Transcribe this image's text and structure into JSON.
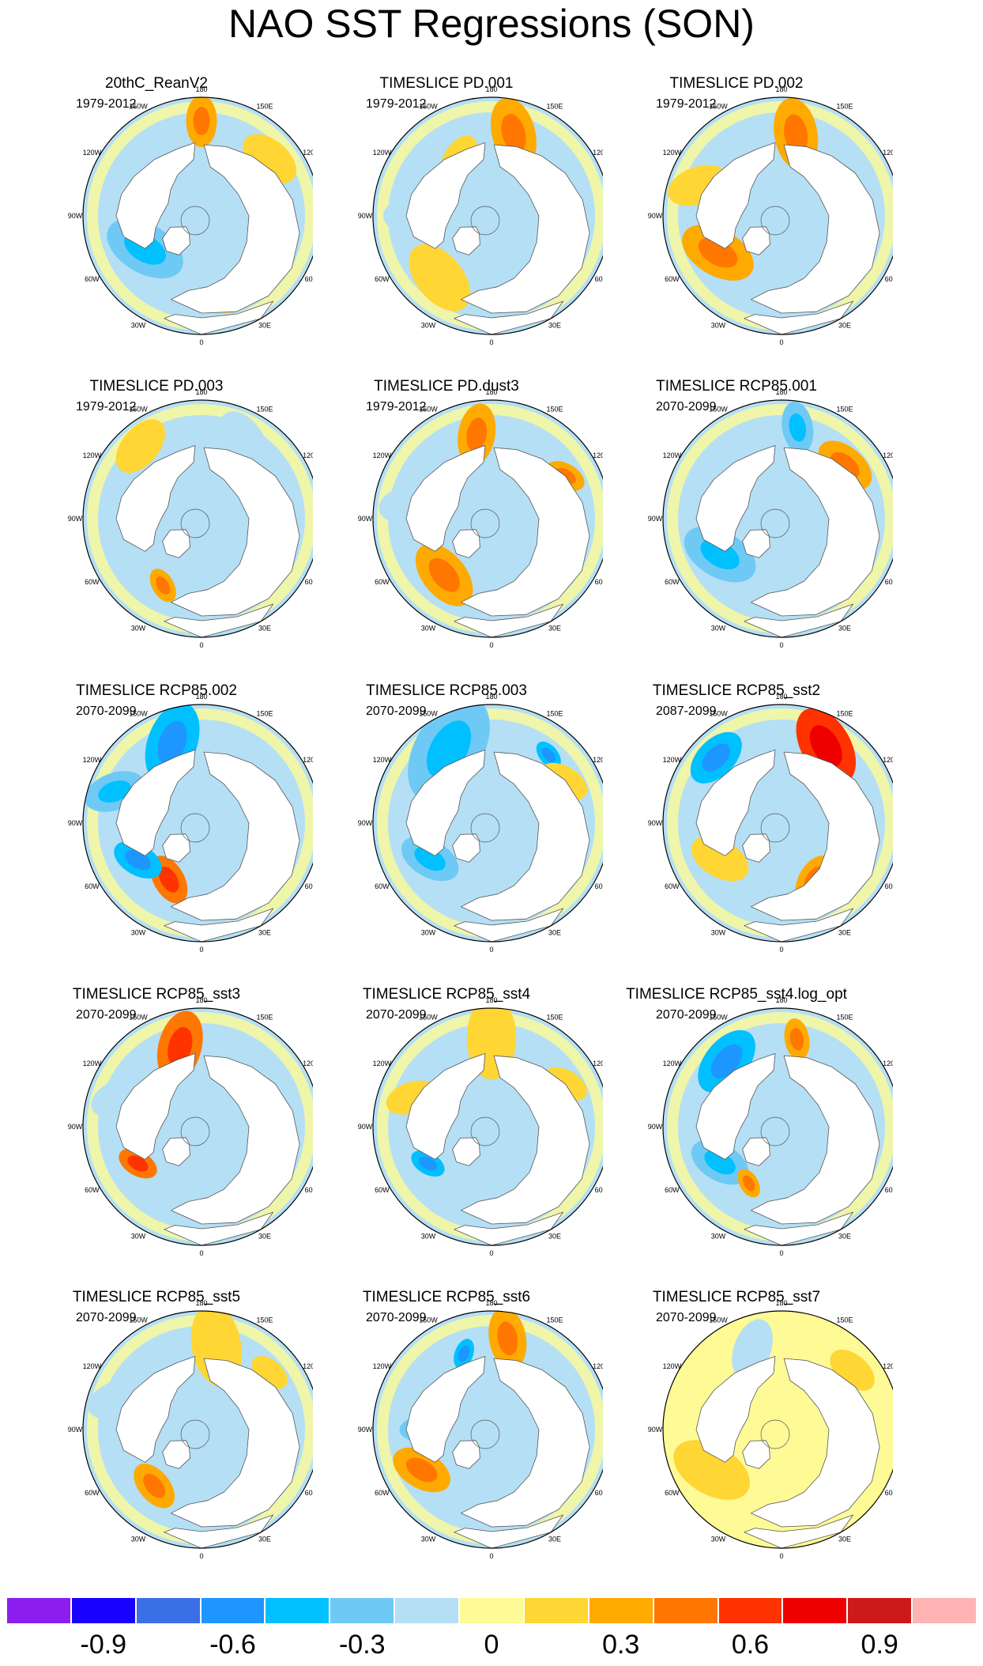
{
  "title": "NAO SST Regressions (SON)",
  "longitude_labels": [
    "180",
    "150E",
    "120E",
    "90E",
    "60E",
    "30E",
    "0",
    "30W",
    "60W",
    "90W",
    "120W",
    "150W"
  ],
  "palette": {
    "land": "#ffffff",
    "coast": "#555555",
    "border": "#000000"
  },
  "panels": [
    {
      "title": "20thC_ReanV2",
      "period": "1979-2012",
      "pattern": "neutral_blue",
      "blobs": [
        {
          "lon": 180,
          "r": 0.8,
          "v": 0.3,
          "s": 0.1
        },
        {
          "lon": 130,
          "r": 0.75,
          "v": 0.15,
          "s": 0.12
        },
        {
          "lon": 300,
          "r": 0.55,
          "v": -0.3,
          "s": 0.16
        },
        {
          "lon": 20,
          "r": 0.7,
          "v": 0.15,
          "s": 0.08
        }
      ]
    },
    {
      "title": "TIMESLICE PD.001",
      "period": "1979-2012",
      "pattern": "warm_pacific",
      "blobs": [
        {
          "lon": 165,
          "r": 0.72,
          "v": 0.3,
          "s": 0.14
        },
        {
          "lon": 210,
          "r": 0.55,
          "v": 0.15,
          "s": 0.1
        },
        {
          "lon": 320,
          "r": 0.68,
          "v": 0.15,
          "s": 0.15
        },
        {
          "lon": 150,
          "r": 0.45,
          "v": -0.6,
          "s": 0.05
        },
        {
          "lon": 270,
          "r": 0.65,
          "v": -0.15,
          "s": 0.12
        }
      ]
    },
    {
      "title": "TIMESLICE PD.002",
      "period": "1979-2012",
      "pattern": "warm_pacific",
      "blobs": [
        {
          "lon": 170,
          "r": 0.7,
          "v": 0.3,
          "s": 0.14
        },
        {
          "lon": 300,
          "r": 0.62,
          "v": 0.3,
          "s": 0.15
        },
        {
          "lon": 250,
          "r": 0.75,
          "v": 0.15,
          "s": 0.12
        },
        {
          "lon": 60,
          "r": 0.7,
          "v": -0.15,
          "s": 0.1
        }
      ]
    },
    {
      "title": "TIMESLICE PD.003",
      "period": "1979-2012",
      "pattern": "neutral_blue",
      "blobs": [
        {
          "lon": 220,
          "r": 0.8,
          "v": 0.15,
          "s": 0.12
        },
        {
          "lon": 150,
          "r": 0.72,
          "v": -0.15,
          "s": 0.14
        },
        {
          "lon": 330,
          "r": 0.65,
          "v": 0.3,
          "s": 0.07
        },
        {
          "lon": 280,
          "r": 0.5,
          "v": -0.3,
          "s": 0.05
        }
      ]
    },
    {
      "title": "TIMESLICE PD.dust3",
      "period": "1979-2012",
      "pattern": "warm_pacific",
      "blobs": [
        {
          "lon": 190,
          "r": 0.72,
          "v": 0.3,
          "s": 0.12
        },
        {
          "lon": 120,
          "r": 0.72,
          "v": 0.3,
          "s": 0.08
        },
        {
          "lon": 320,
          "r": 0.62,
          "v": 0.3,
          "s": 0.14
        },
        {
          "lon": 260,
          "r": 0.7,
          "v": -0.15,
          "s": 0.12
        }
      ]
    },
    {
      "title": "TIMESLICE RCP85.001",
      "period": "2070-2099",
      "pattern": "neutral_blue",
      "blobs": [
        {
          "lon": 170,
          "r": 0.78,
          "v": -0.3,
          "s": 0.1
        },
        {
          "lon": 130,
          "r": 0.7,
          "v": 0.3,
          "s": 0.12
        },
        {
          "lon": 300,
          "r": 0.6,
          "v": -0.3,
          "s": 0.15
        },
        {
          "lon": 40,
          "r": 0.7,
          "v": 0.3,
          "s": 0.06
        }
      ]
    },
    {
      "title": "TIMESLICE RCP85.002",
      "period": "2070-2099",
      "pattern": "cold_pacific",
      "blobs": [
        {
          "lon": 200,
          "r": 0.72,
          "v": -0.45,
          "s": 0.16
        },
        {
          "lon": 250,
          "r": 0.78,
          "v": -0.3,
          "s": 0.12
        },
        {
          "lon": 330,
          "r": 0.55,
          "v": 0.45,
          "s": 0.1
        },
        {
          "lon": 300,
          "r": 0.62,
          "v": -0.45,
          "s": 0.1
        }
      ]
    },
    {
      "title": "TIMESLICE RCP85.003",
      "period": "2070-2099",
      "pattern": "cold_pacific",
      "blobs": [
        {
          "lon": 210,
          "r": 0.72,
          "v": -0.3,
          "s": 0.22
        },
        {
          "lon": 140,
          "r": 0.75,
          "v": -0.45,
          "s": 0.06
        },
        {
          "lon": 300,
          "r": 0.6,
          "v": -0.3,
          "s": 0.12
        },
        {
          "lon": 120,
          "r": 0.7,
          "v": 0.15,
          "s": 0.1
        }
      ]
    },
    {
      "title": "TIMESLICE RCP85_sst2",
      "period": "2087-2099",
      "pattern": "warm_pacific",
      "blobs": [
        {
          "lon": 150,
          "r": 0.75,
          "v": 0.6,
          "s": 0.16
        },
        {
          "lon": 225,
          "r": 0.78,
          "v": -0.45,
          "s": 0.12
        },
        {
          "lon": 300,
          "r": 0.6,
          "v": 0.15,
          "s": 0.12
        },
        {
          "lon": 30,
          "r": 0.55,
          "v": 0.3,
          "s": 0.1
        }
      ]
    },
    {
      "title": "TIMESLICE RCP85_sst3",
      "period": "2070-2099",
      "pattern": "warm_pacific",
      "blobs": [
        {
          "lon": 195,
          "r": 0.7,
          "v": 0.45,
          "s": 0.14
        },
        {
          "lon": 300,
          "r": 0.62,
          "v": 0.45,
          "s": 0.08
        },
        {
          "lon": 250,
          "r": 0.72,
          "v": -0.15,
          "s": 0.12
        },
        {
          "lon": 40,
          "r": 0.6,
          "v": 0.3,
          "s": 0.07
        }
      ]
    },
    {
      "title": "TIMESLICE RCP85_sst4",
      "period": "2070-2099",
      "pattern": "neutral_blue",
      "blobs": [
        {
          "lon": 180,
          "r": 0.75,
          "v": 0.15,
          "s": 0.16
        },
        {
          "lon": 300,
          "r": 0.62,
          "v": -0.45,
          "s": 0.07
        },
        {
          "lon": 250,
          "r": 0.72,
          "v": 0.15,
          "s": 0.1
        },
        {
          "lon": 120,
          "r": 0.72,
          "v": 0.15,
          "s": 0.09
        }
      ]
    },
    {
      "title": "TIMESLICE RCP85_sst4.log_opt",
      "period": "2070-2099",
      "pattern": "cold_pacific",
      "blobs": [
        {
          "lon": 220,
          "r": 0.72,
          "v": -0.45,
          "s": 0.14
        },
        {
          "lon": 170,
          "r": 0.75,
          "v": 0.3,
          "s": 0.08
        },
        {
          "lon": 300,
          "r": 0.6,
          "v": -0.3,
          "s": 0.12
        },
        {
          "lon": 330,
          "r": 0.55,
          "v": 0.3,
          "s": 0.06
        }
      ]
    },
    {
      "title": "TIMESLICE RCP85_sst5",
      "period": "2070-2099",
      "pattern": "neutral_blue",
      "blobs": [
        {
          "lon": 170,
          "r": 0.72,
          "v": 0.15,
          "s": 0.16
        },
        {
          "lon": 320,
          "r": 0.62,
          "v": 0.3,
          "s": 0.1
        },
        {
          "lon": 250,
          "r": 0.75,
          "v": -0.15,
          "s": 0.12
        },
        {
          "lon": 130,
          "r": 0.75,
          "v": 0.15,
          "s": 0.08
        }
      ]
    },
    {
      "title": "TIMESLICE RCP85_sst6",
      "period": "2070-2099",
      "pattern": "warm_pacific",
      "blobs": [
        {
          "lon": 200,
          "r": 0.68,
          "v": -0.45,
          "s": 0.06
        },
        {
          "lon": 170,
          "r": 0.78,
          "v": 0.3,
          "s": 0.12
        },
        {
          "lon": 300,
          "r": 0.68,
          "v": 0.3,
          "s": 0.12
        },
        {
          "lon": 270,
          "r": 0.6,
          "v": -0.3,
          "s": 0.08
        }
      ]
    },
    {
      "title": "TIMESLICE RCP85_sst7",
      "period": "2070-2099",
      "pattern": "warm_all",
      "blobs": [
        {
          "lon": 200,
          "r": 0.72,
          "v": -0.15,
          "s": 0.12
        },
        {
          "lon": 300,
          "r": 0.68,
          "v": 0.15,
          "s": 0.16
        },
        {
          "lon": 130,
          "r": 0.78,
          "v": 0.15,
          "s": 0.1
        }
      ]
    }
  ],
  "colorbar": {
    "colors": [
      "#8b1eef",
      "#1a00ff",
      "#3a6fe8",
      "#1e96ff",
      "#00c0ff",
      "#6ecaf5",
      "#b5dff5",
      "#fefa96",
      "#ffd633",
      "#ffaa00",
      "#ff7700",
      "#ff3300",
      "#ee0000",
      "#cc1a1a",
      "#ffb3b3"
    ],
    "labels": [
      "-0.9",
      "-0.6",
      "-0.3",
      "0",
      "0.3",
      "0.6",
      "0.9"
    ],
    "label_boundaries": [
      1,
      3,
      5,
      7,
      9,
      11,
      13
    ]
  }
}
